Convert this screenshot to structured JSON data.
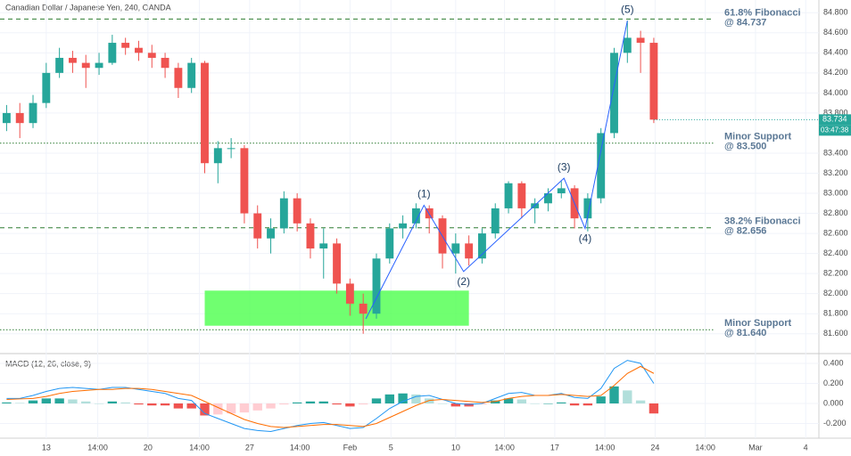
{
  "chart_data": [
    {
      "type": "candlestick",
      "title": "Canadian Dollar / Japanese Yen, 240, OANDA",
      "ohlc": [
        [
          83.7,
          83.88,
          83.62,
          83.8
        ],
        [
          83.8,
          83.9,
          83.55,
          83.7
        ],
        [
          83.7,
          83.98,
          83.65,
          83.9
        ],
        [
          83.9,
          84.3,
          83.85,
          84.2
        ],
        [
          84.2,
          84.45,
          84.15,
          84.35
        ],
        [
          84.35,
          84.42,
          84.2,
          84.3
        ],
        [
          84.3,
          84.38,
          84.05,
          84.25
        ],
        [
          84.25,
          84.4,
          84.18,
          84.3
        ],
        [
          84.3,
          84.58,
          84.28,
          84.5
        ],
        [
          84.5,
          84.55,
          84.38,
          84.45
        ],
        [
          84.45,
          84.52,
          84.32,
          84.4
        ],
        [
          84.4,
          84.48,
          84.25,
          84.35
        ],
        [
          84.35,
          84.4,
          84.15,
          84.25
        ],
        [
          84.25,
          84.3,
          83.95,
          84.05
        ],
        [
          84.05,
          84.35,
          84.0,
          84.3
        ],
        [
          84.3,
          84.32,
          83.2,
          83.3
        ],
        [
          83.3,
          83.52,
          83.1,
          83.45
        ],
        [
          83.45,
          83.55,
          83.35,
          83.45
        ],
        [
          83.45,
          83.48,
          82.7,
          82.8
        ],
        [
          82.8,
          82.88,
          82.45,
          82.55
        ],
        [
          82.55,
          82.75,
          82.4,
          82.65
        ],
        [
          82.65,
          83.02,
          82.6,
          82.95
        ],
        [
          82.95,
          83.0,
          82.62,
          82.7
        ],
        [
          82.7,
          82.75,
          82.35,
          82.45
        ],
        [
          82.45,
          82.65,
          82.15,
          82.5
        ],
        [
          82.5,
          82.55,
          82.0,
          82.1
        ],
        [
          82.1,
          82.15,
          81.78,
          81.9
        ],
        [
          81.9,
          82.0,
          81.6,
          81.8
        ],
        [
          81.8,
          82.4,
          81.75,
          82.35
        ],
        [
          82.35,
          82.7,
          82.3,
          82.65
        ],
        [
          82.65,
          82.78,
          82.55,
          82.7
        ],
        [
          82.7,
          82.9,
          82.65,
          82.85
        ],
        [
          82.85,
          82.88,
          82.6,
          82.75
        ],
        [
          82.75,
          82.78,
          82.25,
          82.4
        ],
        [
          82.4,
          82.6,
          82.2,
          82.5
        ],
        [
          82.5,
          82.58,
          82.28,
          82.35
        ],
        [
          82.35,
          82.65,
          82.3,
          82.6
        ],
        [
          82.6,
          82.9,
          82.55,
          82.85
        ],
        [
          82.85,
          83.12,
          82.8,
          83.1
        ],
        [
          83.1,
          83.12,
          82.75,
          82.85
        ],
        [
          82.85,
          82.95,
          82.7,
          82.9
        ],
        [
          82.9,
          83.05,
          82.82,
          83.0
        ],
        [
          83.0,
          83.12,
          82.95,
          83.05
        ],
        [
          83.05,
          83.08,
          82.65,
          82.75
        ],
        [
          82.75,
          83.0,
          82.62,
          82.95
        ],
        [
          82.95,
          83.65,
          82.9,
          83.6
        ],
        [
          83.6,
          84.45,
          83.55,
          84.4
        ],
        [
          84.4,
          84.72,
          84.3,
          84.55
        ],
        [
          84.55,
          84.62,
          84.2,
          84.5
        ],
        [
          84.5,
          84.55,
          83.7,
          83.734
        ]
      ],
      "up_color": "#26a69a",
      "down_color": "#ef5350",
      "xlim": [
        0,
        62
      ],
      "xticks": [
        {
          "value": 3.5,
          "label": "13"
        },
        {
          "value": 7.4,
          "label": "14:00"
        },
        {
          "value": 11.2,
          "label": "20"
        },
        {
          "value": 15.1,
          "label": "14:00"
        },
        {
          "value": 18.9,
          "label": "27"
        },
        {
          "value": 22.7,
          "label": "14:00"
        },
        {
          "value": 26.5,
          "label": "Feb"
        },
        {
          "value": 29.6,
          "label": "5"
        },
        {
          "value": 34.5,
          "label": "10"
        },
        {
          "value": 38.2,
          "label": "14:00"
        },
        {
          "value": 42.0,
          "label": "17"
        },
        {
          "value": 45.8,
          "label": "14:00"
        },
        {
          "value": 49.6,
          "label": "24"
        },
        {
          "value": 53.4,
          "label": "14:00"
        },
        {
          "value": 57.2,
          "label": "Mar"
        },
        {
          "value": 61.0,
          "label": "4"
        }
      ],
      "ylim": [
        81.5,
        84.9
      ],
      "yticks": [
        {
          "value": 84.8,
          "label": "84.800"
        },
        {
          "value": 84.6,
          "label": "84.600"
        },
        {
          "value": 84.4,
          "label": "84.400"
        },
        {
          "value": 84.2,
          "label": "84.200"
        },
        {
          "value": 84.0,
          "label": "84.000"
        },
        {
          "value": 83.8,
          "label": "83.800"
        },
        {
          "value": 83.4,
          "label": "83.400"
        },
        {
          "value": 83.2,
          "label": "83.200"
        },
        {
          "value": 83.0,
          "label": "83.000"
        },
        {
          "value": 82.8,
          "label": "82.800"
        },
        {
          "value": 82.6,
          "label": "82.600"
        },
        {
          "value": 82.4,
          "label": "82.400"
        },
        {
          "value": 82.2,
          "label": "82.200"
        },
        {
          "value": 82.0,
          "label": "82.000"
        },
        {
          "value": 81.8,
          "label": "81.800"
        },
        {
          "value": 81.6,
          "label": "81.600"
        }
      ],
      "grid": true,
      "last_price": {
        "value": 83.734,
        "label": "83.734"
      },
      "timer": "03:47:38",
      "levels": [
        {
          "value": 84.737,
          "style": "dashed",
          "label": [
            "61.8% Fibonacci",
            "@ 84.737"
          ]
        },
        {
          "value": 83.5,
          "style": "dotted",
          "label": [
            "Minor Support",
            "@ 83.500"
          ]
        },
        {
          "value": 82.656,
          "style": "dashed",
          "label": [
            "38.2% Fibonacci",
            "@ 82.656"
          ]
        },
        {
          "value": 81.64,
          "style": "dotted",
          "label": [
            "Minor Support",
            "@ 81.640"
          ]
        }
      ],
      "level_color": "#2e7d32",
      "zone": {
        "x": [
          15.5,
          35.5
        ],
        "y": [
          81.68,
          82.03
        ],
        "color": "#4cff4c"
      },
      "wave": {
        "x": [
          27.7,
          32.1,
          35.1,
          42.7,
          44.3,
          47.5
        ],
        "y": [
          81.75,
          82.88,
          82.22,
          83.15,
          82.65,
          84.72
        ],
        "labels": [
          "(1)",
          "(2)",
          "(3)",
          "(4)",
          "(5)"
        ],
        "color": "#2962ff"
      }
    },
    {
      "type": "macd",
      "title": "MACD (12, 26, close, 9)",
      "series": [
        {
          "name": "MACD",
          "color": "#2196f3",
          "values": [
            0.05,
            0.05,
            0.08,
            0.12,
            0.15,
            0.16,
            0.15,
            0.14,
            0.16,
            0.16,
            0.14,
            0.12,
            0.1,
            0.05,
            0.03,
            -0.1,
            -0.15,
            -0.2,
            -0.25,
            -0.27,
            -0.28,
            -0.25,
            -0.22,
            -0.2,
            -0.19,
            -0.22,
            -0.25,
            -0.24,
            -0.15,
            -0.05,
            0.02,
            0.07,
            0.08,
            0.04,
            0.0,
            -0.01,
            0.0,
            0.05,
            0.1,
            0.11,
            0.08,
            0.08,
            0.1,
            0.06,
            0.05,
            0.15,
            0.35,
            0.43,
            0.4,
            0.2
          ]
        },
        {
          "name": "Signal",
          "color": "#ff6d00",
          "values": [
            0.04,
            0.045,
            0.05,
            0.07,
            0.1,
            0.12,
            0.13,
            0.14,
            0.14,
            0.15,
            0.15,
            0.14,
            0.12,
            0.1,
            0.08,
            0.02,
            -0.04,
            -0.1,
            -0.16,
            -0.2,
            -0.23,
            -0.24,
            -0.23,
            -0.22,
            -0.21,
            -0.21,
            -0.22,
            -0.23,
            -0.2,
            -0.14,
            -0.08,
            -0.02,
            0.03,
            0.04,
            0.03,
            0.02,
            0.01,
            0.02,
            0.05,
            0.07,
            0.08,
            0.08,
            0.09,
            0.08,
            0.07,
            0.08,
            0.18,
            0.3,
            0.37,
            0.3
          ]
        }
      ],
      "histogram": [
        0.01,
        0.005,
        0.03,
        0.05,
        0.05,
        0.04,
        0.02,
        0,
        0.02,
        0.01,
        -0.01,
        -0.02,
        -0.02,
        -0.05,
        -0.05,
        -0.12,
        -0.11,
        -0.1,
        -0.09,
        -0.07,
        -0.05,
        -0.01,
        0.01,
        0.02,
        0.02,
        -0.01,
        -0.03,
        -0.01,
        0.05,
        0.09,
        0.1,
        0.09,
        0.05,
        0,
        -0.03,
        -0.03,
        -0.01,
        0.03,
        0.05,
        0.04,
        0,
        0,
        0.01,
        -0.02,
        -0.02,
        0.07,
        0.17,
        0.13,
        0.03,
        -0.1
      ],
      "histogram_colors": [
        "#26a69a",
        "#b2dfdb",
        "#ef5350",
        "#ffcdd2"
      ],
      "ylim": [
        -0.3,
        0.5
      ],
      "yticks": [
        {
          "value": 0.4,
          "label": "0.400"
        },
        {
          "value": 0.2,
          "label": "0.200"
        },
        {
          "value": 0,
          "label": "0.000"
        },
        {
          "value": -0.2,
          "label": "-0.200"
        }
      ]
    }
  ]
}
